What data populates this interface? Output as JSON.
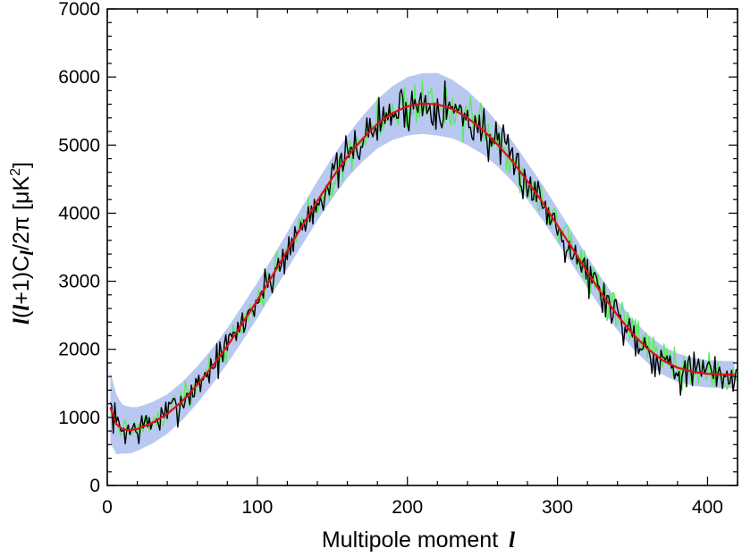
{
  "chart_data": {
    "type": "line",
    "title": "",
    "xlabel_prefix": "Multipole moment",
    "xlabel_symbol": "l",
    "ylabel_parts": {
      "symbol_l": "l",
      "mid": "(",
      "symbol_l2": "l",
      "mid2": "+1)C",
      "symbol_l3": "l",
      "tail": "/2π [μK",
      "sup": "2",
      "close": "]"
    },
    "xlim": [
      0,
      420
    ],
    "ylim": [
      0,
      7000
    ],
    "xticks": [
      0,
      100,
      200,
      300,
      400
    ],
    "xtick_labels": [
      "0",
      "100",
      "200",
      "300",
      "400"
    ],
    "yticks": [
      0,
      1000,
      2000,
      3000,
      4000,
      5000,
      6000,
      7000
    ],
    "ytick_labels": [
      "0",
      "1000",
      "2000",
      "3000",
      "4000",
      "5000",
      "6000",
      "7000"
    ],
    "grid": false,
    "colors": {
      "model": "#dd1111",
      "band": "#b8c8f0",
      "observed": "#000000",
      "alternate": "#55ee55"
    },
    "model_curve": {
      "x": [
        2,
        6,
        10,
        15,
        20,
        30,
        40,
        50,
        60,
        70,
        80,
        90,
        100,
        110,
        120,
        130,
        140,
        150,
        160,
        170,
        180,
        190,
        200,
        210,
        220,
        230,
        240,
        250,
        260,
        270,
        280,
        290,
        300,
        310,
        320,
        330,
        340,
        350,
        360,
        370,
        380,
        390,
        400,
        410,
        418
      ],
      "y": [
        1150,
        900,
        830,
        810,
        830,
        920,
        1050,
        1240,
        1480,
        1750,
        2050,
        2380,
        2720,
        3080,
        3450,
        3820,
        4180,
        4520,
        4830,
        5090,
        5310,
        5470,
        5570,
        5610,
        5600,
        5530,
        5400,
        5230,
        5010,
        4760,
        4470,
        4160,
        3820,
        3480,
        3130,
        2800,
        2500,
        2230,
        2010,
        1840,
        1730,
        1670,
        1640,
        1630,
        1630
      ]
    },
    "band_halfwidth": {
      "x": [
        2,
        10,
        20,
        40,
        60,
        80,
        100,
        120,
        140,
        160,
        180,
        200,
        220,
        240,
        260,
        280,
        300,
        320,
        340,
        360,
        380,
        400,
        418
      ],
      "dy": [
        520,
        360,
        320,
        290,
        270,
        260,
        260,
        270,
        290,
        310,
        360,
        430,
        460,
        400,
        320,
        270,
        250,
        230,
        220,
        210,
        210,
        200,
        200
      ]
    },
    "series": [
      {
        "name": "",
        "role": "observed",
        "seed": 7,
        "noise": [
          380,
          430,
          540,
          480
        ]
      },
      {
        "name": "",
        "role": "alternate",
        "seed": 19,
        "noise": [
          330,
          380,
          520,
          450
        ]
      }
    ]
  }
}
